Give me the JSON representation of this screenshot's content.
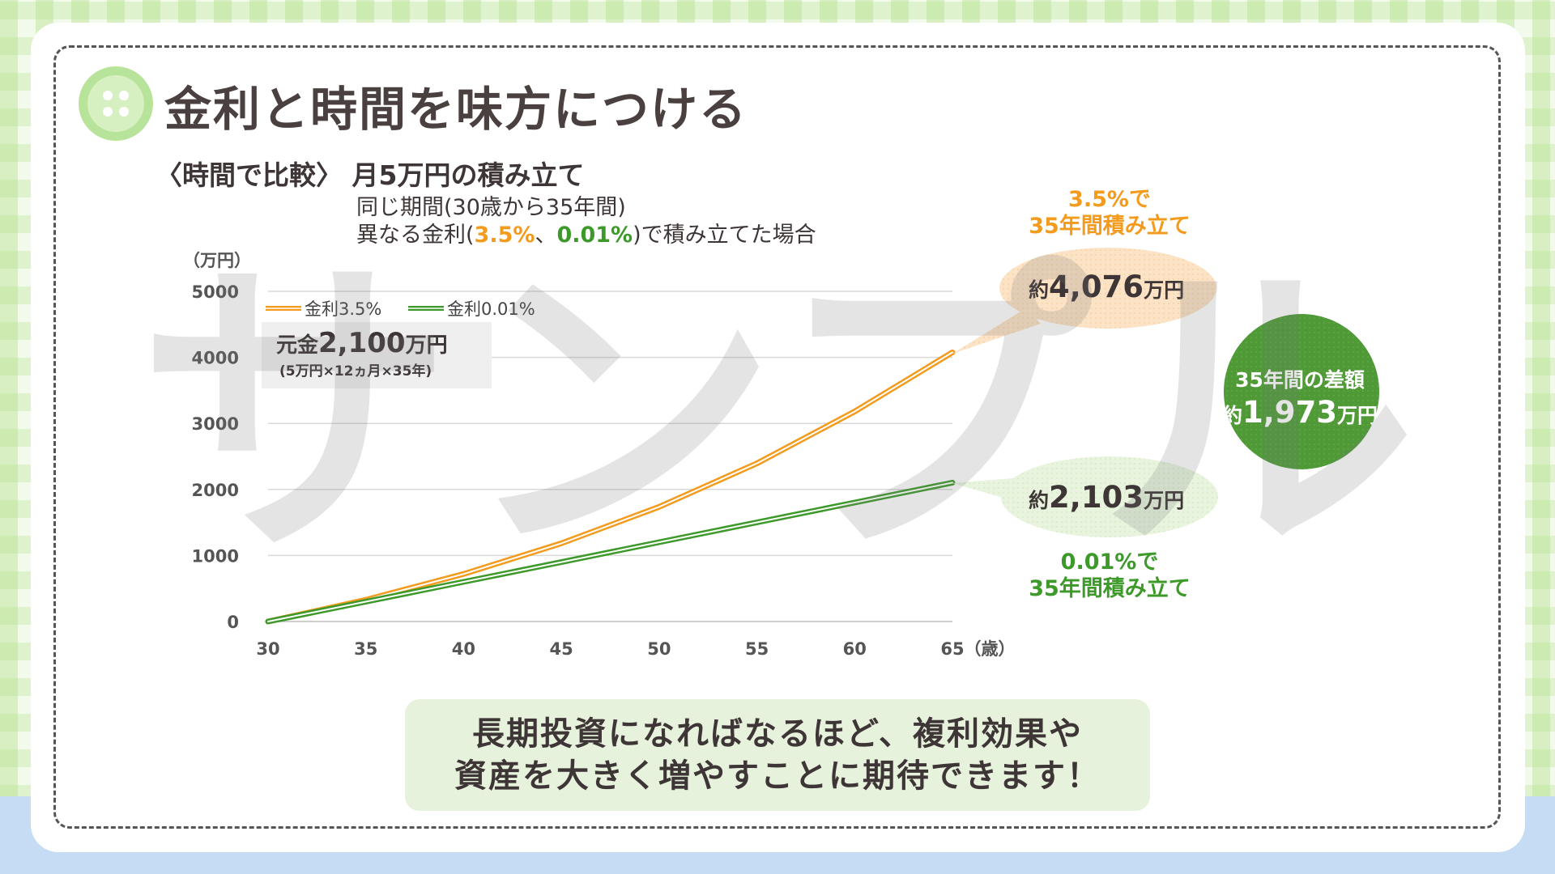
{
  "title": "金利と時間を味方につける",
  "subtitle": "〈時間で比較〉 月5万円の積み立て",
  "condition": {
    "line1": "同じ期間(30歳から35年間)",
    "line2_prefix": "異なる金利(",
    "rate_a": "3.5%",
    "separator": "、",
    "rate_b": "0.01%",
    "line2_suffix": ")で積み立てた場合"
  },
  "principal": {
    "label": "元金",
    "amount": "2,100",
    "unit": "万円",
    "note": "(5万円×12ヵ月×35年)"
  },
  "callouts": {
    "orange_line1": "3.5%で",
    "orange_line2": "35年間積み立て",
    "orange_prefix": "約",
    "orange_amount": "4,076",
    "orange_unit": "万円",
    "green_prefix": "約",
    "green_amount": "2,103",
    "green_unit": "万円",
    "green_line1": "0.01%で",
    "green_line2": "35年間積み立て",
    "diff_label": "35年間の差額",
    "diff_prefix": "約",
    "diff_amount": "1,973",
    "diff_unit": "万円"
  },
  "message": {
    "line1": "長期投資になればなるほど、複利効果や",
    "line2": "資産を大きく増やすことに期待できます！"
  },
  "watermark": "サンプル",
  "colors": {
    "orange": "#f29b1d",
    "green": "#3d9a2a",
    "diff_bubble": "#4f9a37",
    "orange_bubble": "#fce3c6",
    "green_bubble": "#e8f4de"
  },
  "chart_data": {
    "type": "line",
    "ylabel": "（万円）",
    "xlabel": "（歳）",
    "xlim": [
      30,
      65
    ],
    "ylim": [
      0,
      5000
    ],
    "x_ticks": [
      30,
      35,
      40,
      45,
      50,
      55,
      60,
      65
    ],
    "y_ticks": [
      0,
      1000,
      2000,
      3000,
      4000,
      5000
    ],
    "grid": true,
    "legend": "top-left",
    "x": [
      30,
      35,
      40,
      45,
      50,
      55,
      60,
      65
    ],
    "series": [
      {
        "name": "金利3.5%",
        "color": "#f29b1d",
        "values": [
          0,
          328,
          719,
          1184,
          1737,
          2395,
          3180,
          4076
        ]
      },
      {
        "name": "金利0.01%",
        "color": "#3d9a2a",
        "values": [
          0,
          300,
          600,
          900,
          1201,
          1501,
          1802,
          2103
        ]
      }
    ]
  }
}
